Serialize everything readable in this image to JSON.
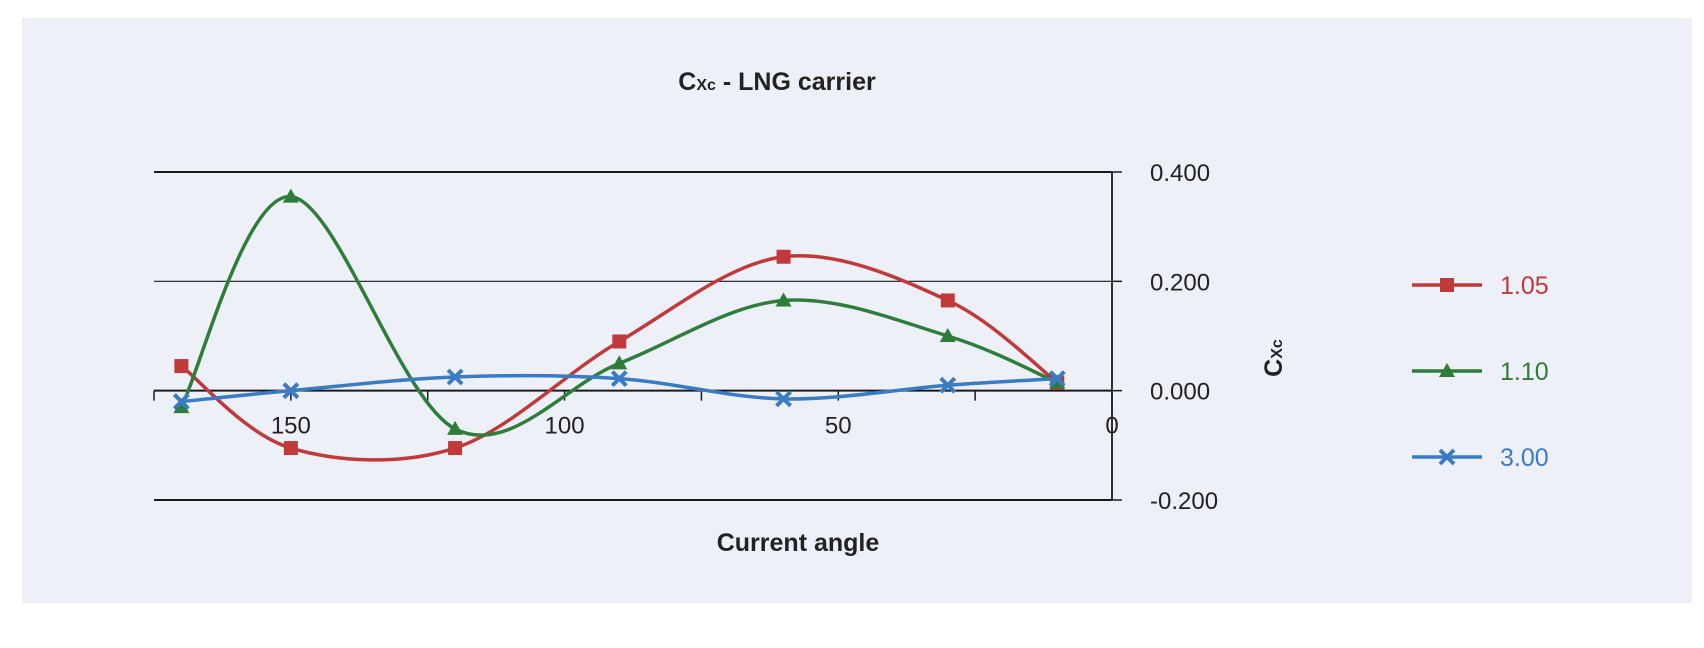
{
  "chart_data": {
    "type": "line",
    "title_main": "C",
    "title_sub": "Xc",
    "title_rest": " - LNG carrier",
    "xlabel": "Current angle",
    "ylabel_main": "C",
    "ylabel_sub": "Xc",
    "x_reversed": true,
    "xlim": [
      175,
      0
    ],
    "ylim": [
      -0.2,
      0.4
    ],
    "x_ticks": [
      150,
      100,
      50,
      0
    ],
    "y_ticks": [
      -0.2,
      0.0,
      0.2,
      0.4
    ],
    "y_tick_labels": [
      "-0.200",
      "0.000",
      "0.200",
      "0.400"
    ],
    "x_tick_labels": [
      "150",
      "100",
      "50",
      "0"
    ],
    "grid": "horizontal",
    "legend_position": "right",
    "series": [
      {
        "name": "1.05",
        "color": "#c0393b",
        "marker": "square",
        "points": [
          {
            "x": 170,
            "y": 0.045
          },
          {
            "x": 150,
            "y": -0.105
          },
          {
            "x": 120,
            "y": -0.105
          },
          {
            "x": 90,
            "y": 0.09
          },
          {
            "x": 60,
            "y": 0.245
          },
          {
            "x": 30,
            "y": 0.165
          },
          {
            "x": 10,
            "y": 0.015
          }
        ]
      },
      {
        "name": "1.10",
        "color": "#2e7d3a",
        "marker": "triangle",
        "points": [
          {
            "x": 170,
            "y": -0.03
          },
          {
            "x": 150,
            "y": 0.355
          },
          {
            "x": 120,
            "y": -0.07
          },
          {
            "x": 90,
            "y": 0.05
          },
          {
            "x": 60,
            "y": 0.165
          },
          {
            "x": 30,
            "y": 0.1
          },
          {
            "x": 10,
            "y": 0.015
          }
        ]
      },
      {
        "name": "3.00",
        "color": "#3a7cc4",
        "marker": "x",
        "points": [
          {
            "x": 170,
            "y": -0.02
          },
          {
            "x": 150,
            "y": 0.0
          },
          {
            "x": 120,
            "y": 0.025
          },
          {
            "x": 90,
            "y": 0.022
          },
          {
            "x": 60,
            "y": -0.015
          },
          {
            "x": 30,
            "y": 0.01
          },
          {
            "x": 10,
            "y": 0.022
          }
        ]
      }
    ]
  }
}
